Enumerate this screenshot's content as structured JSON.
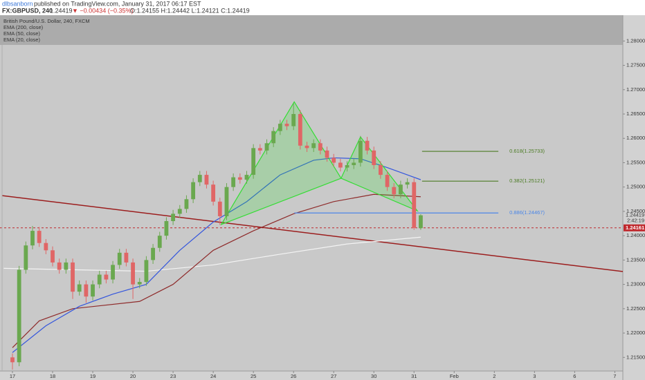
{
  "chart_data": {
    "type": "candlestick",
    "publisher": "dlbsanborn",
    "published": "published on TradingView.com, January 31, 2017 06:17 EST",
    "symbol": "FX:GBPUSD, 240",
    "last": "1.24419",
    "change": "▼ −0.00434 (−0.35%)",
    "ohlc": "O:1.24155 H:1.24442 L:1.24121 C:1.24419",
    "instrument": "British Pound/U.S. Dollar, 240, FXCM",
    "up_color": "#6aa84f",
    "down_color": "#e06666",
    "open": [
      1.215,
      1.214,
      1.233,
      1.238,
      1.241,
      1.2385,
      1.237,
      1.2345,
      1.233,
      1.2345,
      1.2285,
      1.23,
      1.2275,
      1.23,
      1.232,
      1.231,
      1.234,
      1.2365,
      1.2345,
      1.23,
      1.2305,
      1.235,
      1.2375,
      1.24,
      1.243,
      1.2445,
      1.2455,
      1.2475,
      1.251,
      1.2525,
      1.2505,
      1.247,
      1.244,
      1.25,
      1.252,
      1.2515,
      1.2525,
      1.258,
      1.2575,
      1.259,
      1.2615,
      1.263,
      1.2625,
      1.265,
      1.2585,
      1.258,
      1.259,
      1.2575,
      1.256,
      1.255,
      1.254,
      1.2545,
      1.255,
      1.2595,
      1.2575,
      1.2545,
      1.2525,
      1.25,
      1.2485,
      1.2505,
      1.251,
      1.24155
    ],
    "high": [
      1.2158,
      1.2338,
      1.2388,
      1.242,
      1.2418,
      1.2393,
      1.2378,
      1.2353,
      1.2353,
      1.2353,
      1.2308,
      1.2308,
      1.2308,
      1.2328,
      1.2328,
      1.2348,
      1.2373,
      1.2373,
      1.2353,
      1.2313,
      1.2358,
      1.2383,
      1.2408,
      1.2438,
      1.2453,
      1.2463,
      1.2483,
      1.2518,
      1.2533,
      1.2533,
      1.2513,
      1.2478,
      1.2508,
      1.2528,
      1.2528,
      1.2533,
      1.2588,
      1.2588,
      1.2598,
      1.2623,
      1.2638,
      1.2638,
      1.2672,
      1.2658,
      1.2593,
      1.2598,
      1.2598,
      1.2583,
      1.2568,
      1.2558,
      1.2553,
      1.2558,
      1.2605,
      1.2603,
      1.2583,
      1.2553,
      1.2533,
      1.2508,
      1.2513,
      1.2518,
      1.2518,
      1.24442
    ],
    "low": [
      1.2125,
      1.2132,
      1.2322,
      1.2372,
      1.2377,
      1.2362,
      1.2337,
      1.2322,
      1.2322,
      1.227,
      1.2277,
      1.2262,
      1.2267,
      1.2292,
      1.2302,
      1.2302,
      1.2332,
      1.2337,
      1.227,
      1.2292,
      1.2297,
      1.2342,
      1.2367,
      1.2392,
      1.2422,
      1.2437,
      1.2447,
      1.2467,
      1.2502,
      1.2497,
      1.2462,
      1.2422,
      1.2432,
      1.2492,
      1.2507,
      1.2507,
      1.2517,
      1.2567,
      1.2567,
      1.2582,
      1.2607,
      1.2617,
      1.2617,
      1.2577,
      1.2572,
      1.2572,
      1.2567,
      1.2552,
      1.2542,
      1.2532,
      1.2532,
      1.2537,
      1.2542,
      1.2567,
      1.2537,
      1.2517,
      1.2492,
      1.2477,
      1.2477,
      1.2497,
      1.2412,
      1.24121
    ],
    "close": [
      1.214,
      1.233,
      1.238,
      1.241,
      1.2385,
      1.237,
      1.2345,
      1.233,
      1.2345,
      1.2285,
      1.23,
      1.2275,
      1.23,
      1.232,
      1.231,
      1.234,
      1.2365,
      1.2345,
      1.23,
      1.2305,
      1.235,
      1.2375,
      1.24,
      1.243,
      1.2445,
      1.2455,
      1.2475,
      1.251,
      1.2525,
      1.2505,
      1.247,
      1.244,
      1.25,
      1.252,
      1.2515,
      1.2525,
      1.258,
      1.2575,
      1.259,
      1.2615,
      1.263,
      1.2625,
      1.265,
      1.2585,
      1.258,
      1.259,
      1.2575,
      1.256,
      1.255,
      1.254,
      1.2545,
      1.255,
      1.2595,
      1.2575,
      1.2545,
      1.2525,
      1.25,
      1.2485,
      1.2505,
      1.251,
      1.2416,
      1.24419
    ],
    "series": [
      {
        "name": "EMA (200, close)",
        "color": "#f4f4f4",
        "x": [
          -1.3,
          20,
          30,
          40,
          50,
          61
        ],
        "values": [
          1.2333,
          1.2327,
          1.234,
          1.2362,
          1.2383,
          1.2397
        ]
      },
      {
        "name": "EMA (50, close)",
        "color": "#8e2a2a",
        "x": [
          0,
          4,
          9,
          19,
          24,
          30,
          36,
          42,
          48,
          54,
          61
        ],
        "values": [
          1.217,
          1.2225,
          1.225,
          1.2265,
          1.23,
          1.237,
          1.241,
          1.2445,
          1.247,
          1.2485,
          1.248
        ]
      },
      {
        "name": "EMA (20, close)",
        "color": "#3355dd",
        "x": [
          0,
          5,
          10,
          15,
          20,
          25,
          30,
          35,
          40,
          45,
          48,
          52,
          56,
          61
        ],
        "values": [
          1.216,
          1.2215,
          1.2255,
          1.228,
          1.23,
          1.237,
          1.2428,
          1.247,
          1.2525,
          1.2555,
          1.256,
          1.2558,
          1.254,
          1.2515
        ]
      }
    ],
    "trendline": {
      "color": "#9b1c1c",
      "x": [
        -1.55,
        91.2
      ],
      "values": [
        1.24824,
        1.23264
      ]
    },
    "pattern": {
      "color": "#33dd33",
      "x": [
        31.2,
        42.1,
        49.1,
        52,
        60.5
      ],
      "values": [
        1.2423,
        1.2675,
        1.2518,
        1.2603,
        1.2451
      ]
    },
    "levels": [
      {
        "label": "0.618(1.25733)",
        "value": 1.25733,
        "color": "#4a7a22",
        "x": [
          61.2,
          72.6
        ]
      },
      {
        "label": "0.382(1.25121)",
        "value": 1.25121,
        "color": "#4a7a22",
        "x": [
          61.2,
          72.6
        ]
      },
      {
        "label": "0.886(1.24467)",
        "value": 1.24467,
        "color": "#4a86e8",
        "x": [
          42.1,
          72.6
        ]
      }
    ],
    "price_tag": {
      "label": "1.24419",
      "value": 1.24419
    },
    "countdown": "2:42:19",
    "alert_line": {
      "label": "1.24161",
      "value": 1.24161,
      "color": "#c0282d"
    },
    "xlim": [
      -1.55,
      91.2
    ],
    "ylim": [
      1.2122,
      1.2853
    ],
    "xticks": [
      {
        "value": 0,
        "label": "17"
      },
      {
        "value": 6,
        "label": "18"
      },
      {
        "value": 12,
        "label": "19"
      },
      {
        "value": 18,
        "label": "20"
      },
      {
        "value": 24,
        "label": "23"
      },
      {
        "value": 30,
        "label": "24"
      },
      {
        "value": 36,
        "label": "25"
      },
      {
        "value": 42,
        "label": "26"
      },
      {
        "value": 48,
        "label": "27"
      },
      {
        "value": 54,
        "label": "30"
      },
      {
        "value": 60,
        "label": "31"
      },
      {
        "value": 66,
        "label": "Feb"
      },
      {
        "value": 72,
        "label": "2"
      },
      {
        "value": 78,
        "label": "3"
      },
      {
        "value": 84,
        "label": "6"
      },
      {
        "value": 90,
        "label": "7"
      }
    ],
    "yticks": [
      {
        "value": 1.28,
        "label": "1.28000"
      },
      {
        "value": 1.275,
        "label": "1.27500"
      },
      {
        "value": 1.27,
        "label": "1.27000"
      },
      {
        "value": 1.265,
        "label": "1.26500"
      },
      {
        "value": 1.26,
        "label": "1.26000"
      },
      {
        "value": 1.255,
        "label": "1.25500"
      },
      {
        "value": 1.25,
        "label": "1.25000"
      },
      {
        "value": 1.245,
        "label": "1.24500"
      },
      {
        "value": 1.24,
        "label": "1.24000"
      },
      {
        "value": 1.235,
        "label": "1.23500"
      },
      {
        "value": 1.23,
        "label": "1.23000"
      },
      {
        "value": 1.225,
        "label": "1.22500"
      },
      {
        "value": 1.22,
        "label": "1.22000"
      },
      {
        "value": 1.215,
        "label": "1.21500"
      }
    ]
  }
}
